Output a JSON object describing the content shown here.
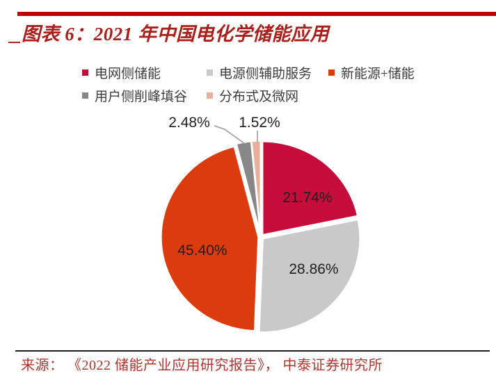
{
  "page": {
    "title": "图表 6：2021 年中国电化学储能应用",
    "source": "来源： 《2022 储能产业应用研究报告》， 中泰证券研究所"
  },
  "colors": {
    "top_rule": "#C00000",
    "title_text": "#A91F1C",
    "title_dash": "#9B2B23",
    "legend_text": "#3D3D3D",
    "label_text": "#1F1F1F",
    "leader_line": "#A6A6A6",
    "slice_border": "#FFFFFF",
    "bottom_rule": "#1A1A1A",
    "source_text": "#B0342E"
  },
  "chart_data": {
    "type": "pie",
    "title": "2021 年中国电化学储能应用",
    "direction": "clockwise",
    "start_angle_deg": 0,
    "legend_position": "top",
    "legend_rows": [
      [
        0,
        1,
        2
      ],
      [
        3,
        4
      ]
    ],
    "slices": [
      {
        "label": "电网侧储能",
        "value": 21.74,
        "display": "21.74%",
        "color": "#C50C3B",
        "label_placement": "inside"
      },
      {
        "label": "电源侧辅助服务",
        "value": 28.86,
        "display": "28.86%",
        "color": "#C9C9C9",
        "label_placement": "inside"
      },
      {
        "label": "新能源+储能",
        "value": 45.4,
        "display": "45.40%",
        "color": "#DC3B0D",
        "label_placement": "inside"
      },
      {
        "label": "用户侧削峰填谷",
        "value": 2.48,
        "display": "2.48%",
        "color": "#878787",
        "label_placement": "outside"
      },
      {
        "label": "分布式及微网",
        "value": 1.52,
        "display": "1.52%",
        "color": "#EBAE9B",
        "label_placement": "outside"
      }
    ]
  }
}
